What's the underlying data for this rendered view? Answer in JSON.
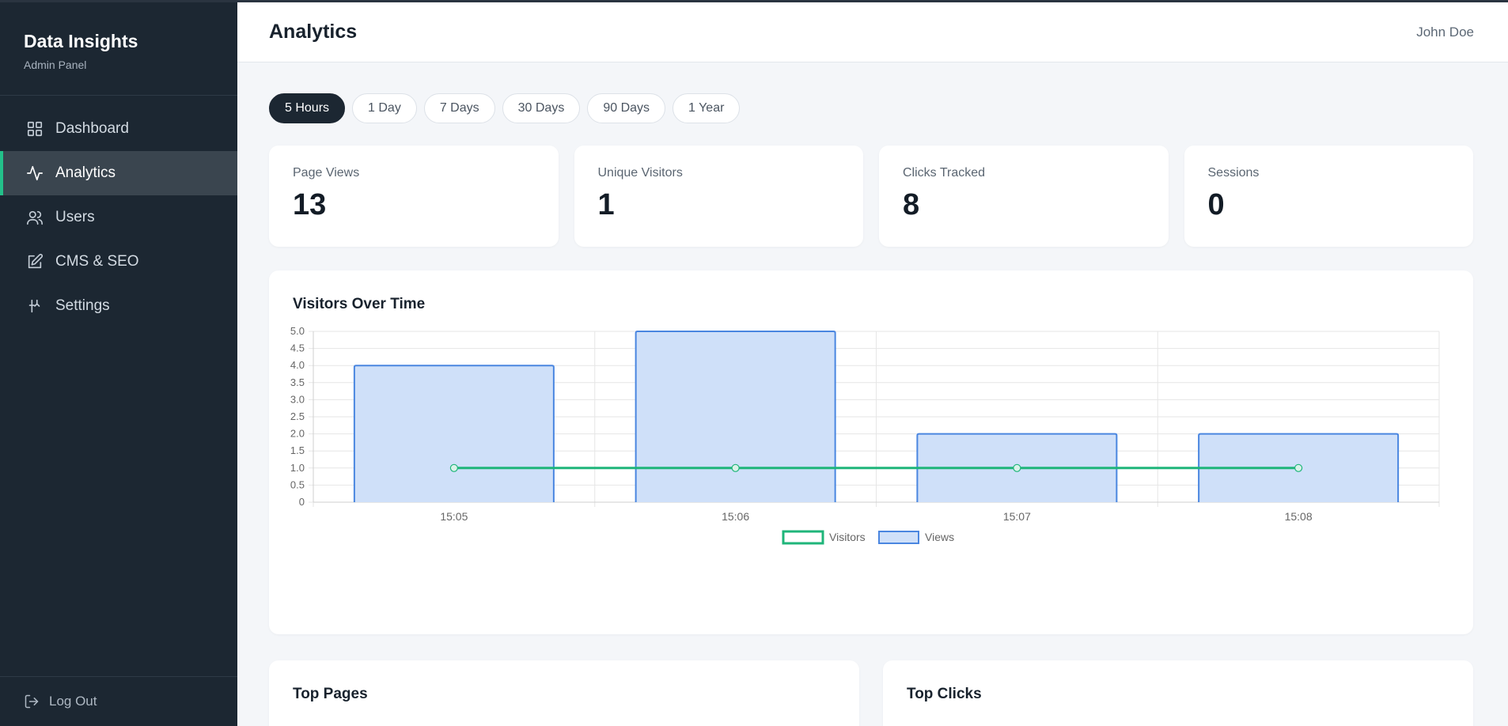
{
  "brand": {
    "title": "Data Insights",
    "subtitle": "Admin Panel"
  },
  "nav": [
    {
      "label": "Dashboard",
      "icon": "grid-icon",
      "active": false
    },
    {
      "label": "Analytics",
      "icon": "activity-icon",
      "active": true
    },
    {
      "label": "Users",
      "icon": "users-icon",
      "active": false
    },
    {
      "label": "CMS & SEO",
      "icon": "edit-icon",
      "active": false
    },
    {
      "label": "Settings",
      "icon": "settings-icon",
      "active": false
    }
  ],
  "logout_label": "Log Out",
  "header": {
    "title": "Analytics",
    "user": "John Doe"
  },
  "ranges": [
    {
      "label": "5 Hours",
      "active": true
    },
    {
      "label": "1 Day",
      "active": false
    },
    {
      "label": "7 Days",
      "active": false
    },
    {
      "label": "30 Days",
      "active": false
    },
    {
      "label": "90 Days",
      "active": false
    },
    {
      "label": "1 Year",
      "active": false
    }
  ],
  "stats": [
    {
      "label": "Page Views",
      "value": "13"
    },
    {
      "label": "Unique Visitors",
      "value": "1"
    },
    {
      "label": "Clicks Tracked",
      "value": "8"
    },
    {
      "label": "Sessions",
      "value": "0"
    }
  ],
  "chart_data": {
    "type": "bar",
    "title": "Visitors Over Time",
    "categories": [
      "15:05",
      "15:06",
      "15:07",
      "15:08"
    ],
    "series": [
      {
        "name": "Visitors",
        "type": "line",
        "values": [
          1,
          1,
          1,
          1
        ],
        "color": "#1fb57a"
      },
      {
        "name": "Views",
        "type": "bar",
        "values": [
          4,
          5,
          2,
          2
        ],
        "color": "#4a86e0",
        "fill": "#cfe0f9"
      }
    ],
    "ylim": [
      0,
      5
    ],
    "yticks": [
      "0",
      "0.5",
      "1.0",
      "1.5",
      "2.0",
      "2.5",
      "3.0",
      "3.5",
      "4.0",
      "4.5",
      "5.0"
    ],
    "grid": true,
    "legend_position": "bottom"
  },
  "bottom_cards": [
    {
      "title": "Top Pages"
    },
    {
      "title": "Top Clicks"
    }
  ]
}
